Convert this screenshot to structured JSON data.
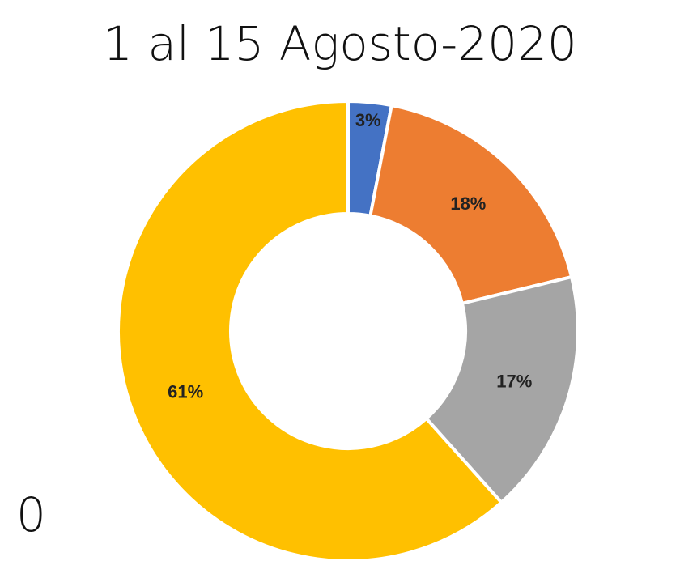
{
  "chart_data": {
    "type": "donut",
    "title": "1 al 15 Agosto-2020",
    "values": [
      3,
      18,
      17,
      61
    ],
    "value_labels": [
      "3%",
      "18%",
      "17%",
      "61%"
    ],
    "colors": [
      "#4472c4",
      "#ed7d31",
      "#a5a5a5",
      "#ffc000"
    ],
    "annotations": [
      "0"
    ]
  }
}
